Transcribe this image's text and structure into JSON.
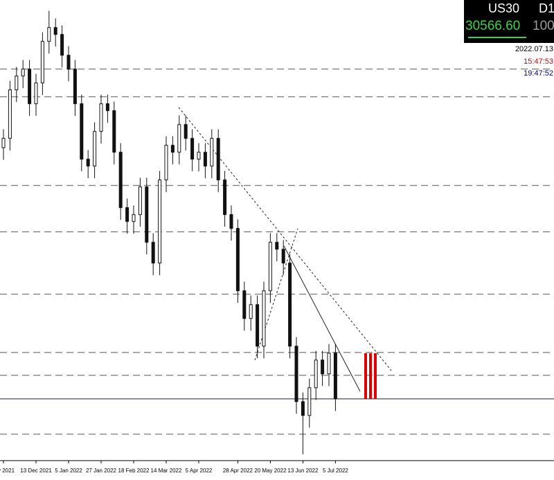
{
  "chart_data": {
    "type": "candlestick",
    "categories": [
      "v 2021",
      null,
      null,
      null,
      null,
      "13 Dec 2021",
      null,
      null,
      null,
      null,
      "5 Jan 2022",
      null,
      null,
      null,
      null,
      "27 Jan 2022",
      null,
      null,
      null,
      null,
      "18 Feb 2022",
      null,
      null,
      null,
      null,
      "14 Mar 2022",
      null,
      null,
      null,
      null,
      "5 Apr 2022",
      null,
      null,
      null,
      null,
      null,
      "28 Apr 2022",
      null,
      null,
      null,
      null,
      "20 May 2022",
      null,
      null,
      null,
      null,
      "13 Jun 2022",
      null,
      null,
      null,
      null,
      "5 Jul 2022"
    ],
    "open": [
      34700,
      34853,
      35651,
      35879,
      35993,
      35423,
      35765,
      36449,
      36677,
      36563,
      36221,
      35993,
      35423,
      34511,
      34397,
      34967,
      35423,
      35309,
      34625,
      33713,
      33485,
      33599,
      34055,
      33143,
      32801,
      34169,
      34739,
      34625,
      35081,
      34853,
      34511,
      34625,
      34397,
      34853,
      34169,
      33599,
      33371,
      32345,
      31889,
      32117,
      31433,
      32345,
      33143,
      33029,
      32801,
      31433,
      30521,
      30293,
      30749,
      31205,
      30977,
      31319
    ],
    "high": [
      35003,
      35801,
      36029,
      36143,
      36143,
      35915,
      36599,
      36952,
      36827,
      36713,
      36371,
      36143,
      35573,
      34661,
      35117,
      35573,
      35573,
      35459,
      34775,
      33863,
      33749,
      34205,
      34205,
      33293,
      34319,
      34889,
      34889,
      35231,
      35231,
      35003,
      34775,
      34775,
      35003,
      35003,
      34319,
      33749,
      33521,
      32495,
      32267,
      32267,
      32495,
      33293,
      33293,
      33179,
      32951,
      31583,
      30671,
      30899,
      31355,
      31355,
      31469,
      31469
    ],
    "low": [
      34500,
      34653,
      35451,
      35679,
      35223,
      35223,
      35565,
      36249,
      36363,
      36021,
      35793,
      35223,
      34311,
      34197,
      34197,
      34767,
      35109,
      34425,
      33513,
      33285,
      33285,
      33399,
      32943,
      32601,
      32601,
      33969,
      34425,
      34425,
      34653,
      34311,
      34311,
      34197,
      34197,
      33969,
      33399,
      33171,
      32145,
      31689,
      31689,
      31233,
      31233,
      32145,
      32829,
      32601,
      31233,
      30321,
      29653,
      30093,
      30549,
      30777,
      30777,
      30367
    ],
    "close": [
      34853,
      35651,
      35879,
      35993,
      35423,
      35765,
      36449,
      36677,
      36563,
      36221,
      35993,
      35423,
      34511,
      34397,
      34967,
      35423,
      35309,
      34625,
      33713,
      33485,
      33599,
      34055,
      33143,
      32801,
      34169,
      34739,
      34625,
      35081,
      34853,
      34511,
      34625,
      34397,
      34853,
      34169,
      33599,
      33371,
      32345,
      31889,
      32117,
      31433,
      32345,
      33143,
      33029,
      32801,
      31433,
      30521,
      30293,
      30749,
      31205,
      30977,
      31319,
      30567
    ],
    "color": "#111111",
    "ylim": [
      29550,
      37130
    ],
    "levels": [
      35993,
      35537,
      34078,
      33314,
      32288,
      31330,
      30954,
      29985
    ],
    "price": {
      "value": 30566.6,
      "label": "30566.60"
    }
  },
  "panel": {
    "symbol": "US30",
    "timeframe": "D1",
    "ask": "100",
    "date": "2022.07.13",
    "server_time": "15:47:53",
    "local_time": "19:47:52"
  }
}
